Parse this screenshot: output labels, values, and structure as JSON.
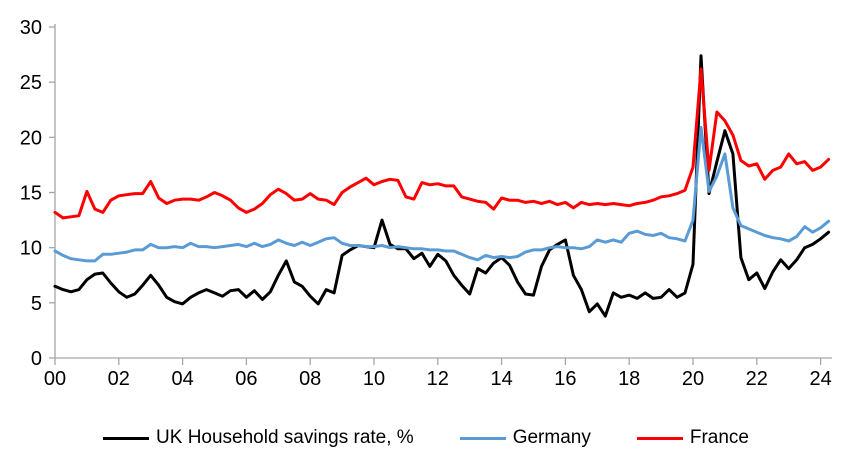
{
  "chart_data": {
    "type": "line",
    "title": "",
    "xlabel": "",
    "ylabel": "",
    "grid": false,
    "legend_position": "bottom",
    "x_axis": {
      "start_year": 2000,
      "frequency": "quarterly",
      "tick_labels": [
        "00",
        "02",
        "04",
        "06",
        "08",
        "10",
        "12",
        "14",
        "16",
        "18",
        "20",
        "22",
        "24"
      ],
      "tick_step_years": 2
    },
    "y_axis": {
      "ticks": [
        0,
        5,
        10,
        15,
        20,
        25,
        30
      ],
      "range": [
        0,
        30
      ]
    },
    "axis_color": "#a6a6a6",
    "series": [
      {
        "name": "UK Household savings rate, %",
        "color": "#000000",
        "values": [
          6.5,
          6.2,
          6.0,
          6.2,
          7.1,
          7.6,
          7.7,
          6.8,
          6.0,
          5.5,
          5.8,
          6.6,
          7.5,
          6.6,
          5.5,
          5.1,
          4.9,
          5.5,
          5.9,
          6.2,
          5.9,
          5.6,
          6.1,
          6.2,
          5.5,
          6.1,
          5.3,
          6.0,
          7.5,
          8.8,
          6.9,
          6.5,
          5.6,
          4.9,
          6.2,
          5.9,
          9.3,
          9.8,
          10.2,
          10.1,
          10.0,
          12.5,
          10.3,
          9.9,
          9.9,
          9.0,
          9.5,
          8.3,
          9.4,
          8.8,
          7.5,
          6.6,
          5.8,
          8.1,
          7.7,
          8.6,
          9.1,
          8.4,
          6.9,
          5.8,
          5.7,
          8.3,
          9.8,
          10.3,
          10.7,
          7.5,
          6.2,
          4.2,
          4.9,
          3.8,
          5.9,
          5.5,
          5.7,
          5.4,
          5.9,
          5.4,
          5.5,
          6.2,
          5.5,
          5.9,
          8.5,
          27.4,
          14.9,
          17.8,
          20.6,
          18.5,
          9.1,
          7.1,
          7.7,
          6.3,
          7.8,
          8.9,
          8.1,
          8.9,
          10.0,
          10.3,
          10.8,
          11.4
        ]
      },
      {
        "name": "Germany",
        "color": "#5b9bd5",
        "values": [
          9.7,
          9.3,
          9.0,
          8.9,
          8.8,
          8.8,
          9.4,
          9.4,
          9.5,
          9.6,
          9.8,
          9.8,
          10.3,
          10.0,
          10.0,
          10.1,
          10.0,
          10.4,
          10.1,
          10.1,
          10.0,
          10.1,
          10.2,
          10.3,
          10.1,
          10.4,
          10.1,
          10.3,
          10.7,
          10.4,
          10.2,
          10.5,
          10.2,
          10.5,
          10.8,
          10.9,
          10.4,
          10.2,
          10.2,
          10.1,
          10.1,
          10.2,
          10.0,
          10.1,
          10.0,
          9.9,
          9.9,
          9.8,
          9.8,
          9.7,
          9.7,
          9.4,
          9.1,
          8.9,
          9.3,
          9.1,
          9.2,
          9.1,
          9.2,
          9.6,
          9.8,
          9.8,
          10.0,
          10.1,
          10.0,
          10.0,
          9.9,
          10.1,
          10.7,
          10.5,
          10.7,
          10.5,
          11.3,
          11.5,
          11.2,
          11.1,
          11.3,
          10.9,
          10.8,
          10.6,
          12.5,
          20.9,
          15.1,
          16.5,
          18.5,
          13.6,
          12.0,
          11.7,
          11.4,
          11.1,
          10.9,
          10.8,
          10.6,
          11.0,
          11.9,
          11.4,
          11.8,
          12.4
        ]
      },
      {
        "name": "France",
        "color": "#ff0000",
        "values": [
          13.2,
          12.7,
          12.8,
          12.9,
          15.1,
          13.5,
          13.2,
          14.3,
          14.7,
          14.8,
          14.9,
          14.9,
          16.0,
          14.5,
          14.0,
          14.3,
          14.4,
          14.4,
          14.3,
          14.6,
          15.0,
          14.7,
          14.3,
          13.6,
          13.2,
          13.5,
          14.0,
          14.8,
          15.3,
          14.9,
          14.3,
          14.4,
          14.9,
          14.4,
          14.3,
          13.9,
          15.0,
          15.5,
          15.9,
          16.3,
          15.7,
          16.0,
          16.2,
          16.1,
          14.6,
          14.4,
          15.9,
          15.7,
          15.8,
          15.6,
          15.6,
          14.6,
          14.4,
          14.2,
          14.1,
          13.5,
          14.5,
          14.3,
          14.3,
          14.1,
          14.2,
          14.0,
          14.2,
          13.9,
          14.1,
          13.6,
          14.1,
          13.9,
          14.0,
          13.9,
          14.0,
          13.9,
          13.8,
          14.0,
          14.1,
          14.3,
          14.6,
          14.7,
          14.9,
          15.2,
          17.3,
          26.2,
          17.0,
          22.3,
          21.5,
          20.2,
          17.9,
          17.4,
          17.6,
          16.2,
          17.0,
          17.3,
          18.5,
          17.6,
          17.8,
          17.0,
          17.3,
          18.0
        ]
      }
    ]
  }
}
